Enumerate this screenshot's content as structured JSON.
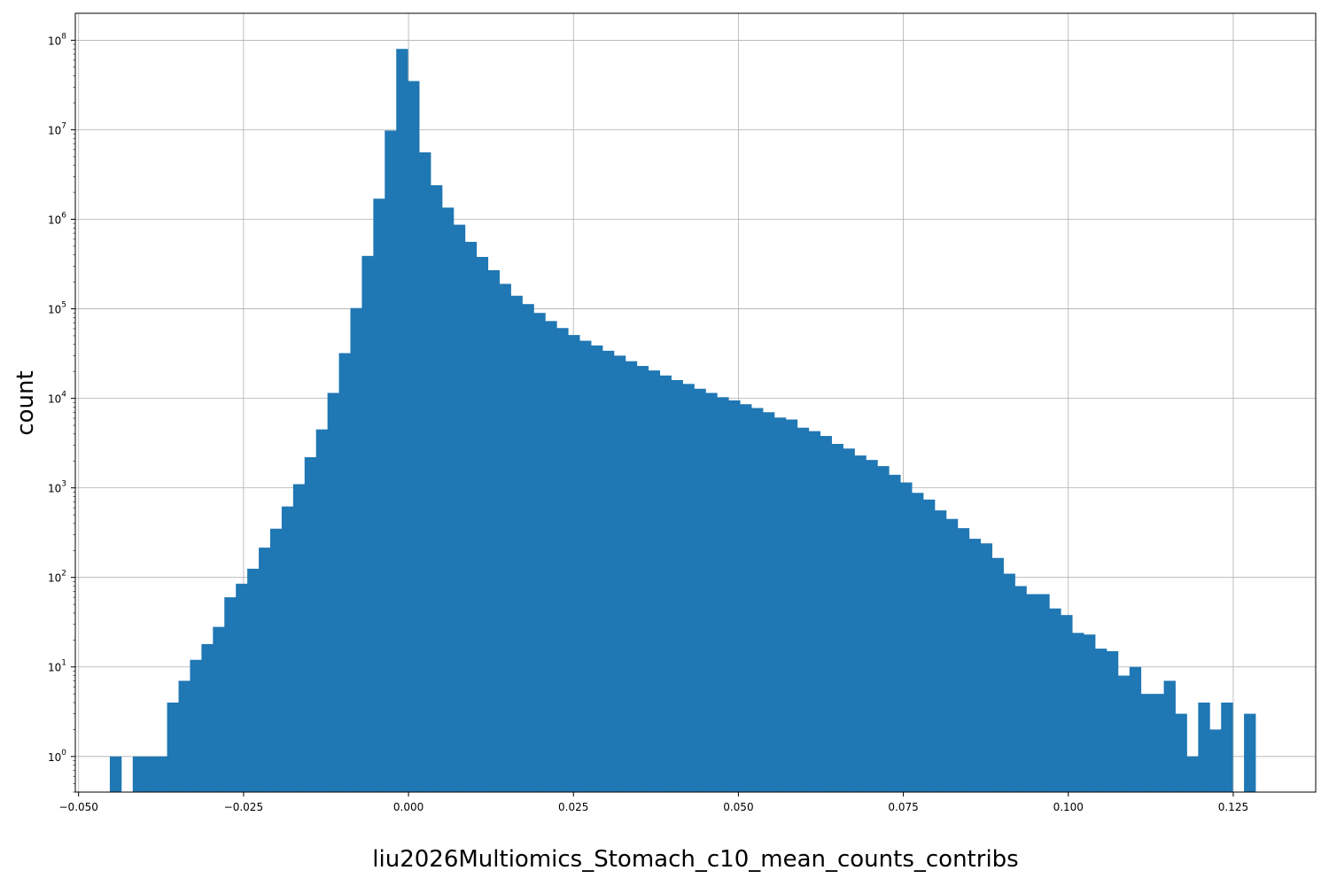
{
  "chart_data": {
    "type": "bar",
    "subtype": "histogram",
    "xlabel": "liu2026Multiomics_Stomach_c10_mean_counts_contribs",
    "ylabel": "count",
    "x_range": [
      -0.0505,
      0.1375
    ],
    "y_scale": "log",
    "y_range": [
      0.4,
      200000000
    ],
    "grid": true,
    "bar_color": "#1f77b4",
    "bin_width": 0.0017364,
    "bin_start": -0.04527,
    "x_ticks": [
      {
        "value": -0.05,
        "label": "−0.050"
      },
      {
        "value": -0.025,
        "label": "−0.025"
      },
      {
        "value": 0.0,
        "label": "0.000"
      },
      {
        "value": 0.025,
        "label": "0.025"
      },
      {
        "value": 0.05,
        "label": "0.050"
      },
      {
        "value": 0.075,
        "label": "0.075"
      },
      {
        "value": 0.1,
        "label": "0.100"
      },
      {
        "value": 0.125,
        "label": "0.125"
      }
    ],
    "y_ticks": [
      {
        "value": 1,
        "base": "10",
        "exp": "0"
      },
      {
        "value": 10,
        "base": "10",
        "exp": "1"
      },
      {
        "value": 100,
        "base": "10",
        "exp": "2"
      },
      {
        "value": 1000,
        "base": "10",
        "exp": "3"
      },
      {
        "value": 10000,
        "base": "10",
        "exp": "4"
      },
      {
        "value": 100000,
        "base": "10",
        "exp": "5"
      },
      {
        "value": 1000000,
        "base": "10",
        "exp": "6"
      },
      {
        "value": 10000000,
        "base": "10",
        "exp": "7"
      },
      {
        "value": 100000000,
        "base": "10",
        "exp": "8"
      }
    ],
    "values": [
      1,
      0,
      1,
      1,
      1,
      4,
      7,
      12,
      18,
      28,
      60,
      85,
      125,
      215,
      350,
      620,
      1100,
      2200,
      4500,
      11500,
      32000,
      102000,
      390000,
      1700000,
      9800000,
      80000000,
      35000000,
      5600000,
      2400000,
      1350000,
      870000,
      560000,
      380000,
      270000,
      190000,
      140000,
      113000,
      90000,
      73000,
      61000,
      51000,
      44000,
      39000,
      34000,
      30000,
      26000,
      23000,
      20500,
      18000,
      16000,
      14500,
      12800,
      11500,
      10300,
      9500,
      8600,
      7800,
      7000,
      6100,
      5800,
      4700,
      4300,
      3800,
      3100,
      2750,
      2300,
      2050,
      1750,
      1400,
      1150,
      880,
      740,
      560,
      450,
      355,
      270,
      240,
      165,
      110,
      80,
      65,
      65,
      45,
      38,
      24,
      23,
      16,
      15,
      8,
      10,
      5,
      5,
      7,
      3,
      1,
      4,
      2,
      4,
      0,
      3
    ]
  }
}
